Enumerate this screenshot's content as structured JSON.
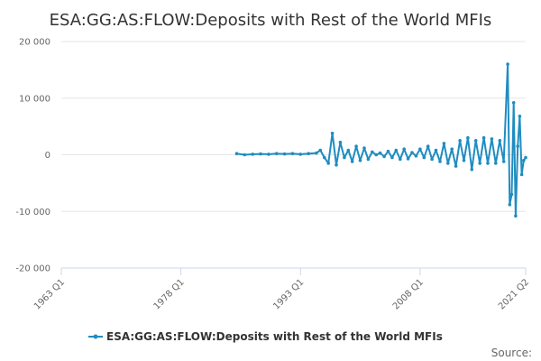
{
  "chart_data": {
    "type": "line",
    "title": "ESA:GG:AS:FLOW:Deposits with Rest of the World MFIs",
    "xlabel": "",
    "ylabel": "",
    "x_tick_labels": [
      "1963 Q1",
      "1978 Q1",
      "1993 Q1",
      "2008 Q1",
      "2021 Q2"
    ],
    "x_range": [
      1963.0,
      2021.25
    ],
    "y_range": [
      -20000,
      20000
    ],
    "y_ticks": [
      20000,
      10000,
      0,
      -10000,
      -20000
    ],
    "y_tick_labels": [
      "20 000",
      "10 000",
      "0",
      "-10 000",
      "-20 000"
    ],
    "grid": "horizontal",
    "legend_position": "bottom",
    "source_label": "Source:",
    "series": [
      {
        "name": "ESA:GG:AS:FLOW:Deposits with Rest of the World MFIs",
        "color": "#1f8dc2",
        "x": [
          1985.0,
          1986.0,
          1987.0,
          1988.0,
          1989.0,
          1990.0,
          1991.0,
          1992.0,
          1993.0,
          1994.0,
          1995.0,
          1995.5,
          1996.0,
          1996.5,
          1997.0,
          1997.5,
          1998.0,
          1998.5,
          1999.0,
          1999.5,
          2000.0,
          2000.5,
          2001.0,
          2001.5,
          2002.0,
          2002.5,
          2003.0,
          2003.5,
          2004.0,
          2004.5,
          2005.0,
          2005.5,
          2006.0,
          2006.5,
          2007.0,
          2007.5,
          2008.0,
          2008.5,
          2009.0,
          2009.5,
          2010.0,
          2010.5,
          2011.0,
          2011.5,
          2012.0,
          2012.5,
          2013.0,
          2013.5,
          2014.0,
          2014.5,
          2015.0,
          2015.5,
          2016.0,
          2016.5,
          2017.0,
          2017.5,
          2018.0,
          2018.5,
          2019.0,
          2019.25,
          2019.5,
          2019.75,
          2020.0,
          2020.25,
          2020.5,
          2020.75,
          2021.0,
          2021.25
        ],
        "y": [
          200,
          0,
          100,
          150,
          100,
          200,
          150,
          200,
          100,
          200,
          300,
          800,
          -500,
          -1500,
          3800,
          -1800,
          2200,
          -500,
          800,
          -1200,
          1500,
          -1000,
          1200,
          -800,
          500,
          0,
          300,
          -300,
          600,
          -500,
          800,
          -800,
          1000,
          -700,
          400,
          -200,
          1000,
          -500,
          1500,
          -800,
          800,
          -1200,
          2000,
          -1500,
          1000,
          -2000,
          2500,
          -1000,
          3000,
          -2600,
          2500,
          -1500,
          3000,
          -1500,
          2800,
          -1500,
          2500,
          -1200,
          16000,
          -8800,
          -7000,
          9200,
          -10800,
          1500,
          6800,
          -3500,
          -1000,
          -500
        ]
      }
    ]
  }
}
